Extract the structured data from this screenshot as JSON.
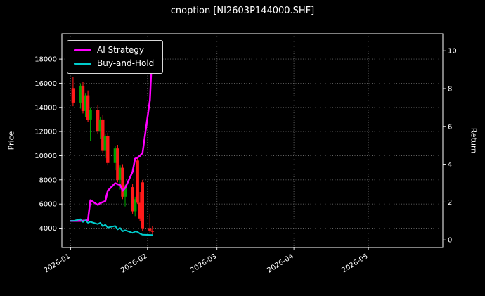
{
  "window": {
    "title": "cnoption [NI2603P144000.SHF]"
  },
  "chart_data": {
    "type": "candlestick+line",
    "title": "cnoption [NI2603P144000.SHF]",
    "ylabel_left": "Price",
    "ylabel_right": "Return",
    "background": "#000000",
    "text_color": "#ffffff",
    "spine_color": "#ffffff",
    "grid": {
      "show": true,
      "color": "#666666",
      "style": "dotted"
    },
    "x_epoch": "2026-01-01",
    "x_range_days": [
      -3.5,
      150
    ],
    "x_ticks": [
      {
        "date": "2026-01-01",
        "label": "2026-01"
      },
      {
        "date": "2026-02-01",
        "label": "2026-02"
      },
      {
        "date": "2026-03-01",
        "label": "2026-03"
      },
      {
        "date": "2026-04-01",
        "label": "2026-04"
      },
      {
        "date": "2026-05-01",
        "label": "2026-05"
      }
    ],
    "price_axis": {
      "lim": [
        2400,
        20100
      ],
      "ticks": [
        4000,
        6000,
        8000,
        10000,
        12000,
        14000,
        16000,
        18000
      ]
    },
    "return_axis": {
      "lim": [
        -0.4,
        10.9
      ],
      "ticks": [
        0,
        2,
        4,
        6,
        8,
        10
      ]
    },
    "candles": {
      "up_color": "#00a000",
      "down_color": "#ff1a1a",
      "dates": [
        "2026-01-02",
        "2026-01-05",
        "2026-01-06",
        "2026-01-07",
        "2026-01-08",
        "2026-01-09",
        "2026-01-12",
        "2026-01-13",
        "2026-01-14",
        "2026-01-15",
        "2026-01-16",
        "2026-01-19",
        "2026-01-20",
        "2026-01-21",
        "2026-01-22",
        "2026-01-23",
        "2026-01-26",
        "2026-01-27",
        "2026-01-28",
        "2026-01-29",
        "2026-01-30",
        "2026-02-02",
        "2026-02-03"
      ],
      "open": [
        15600,
        14400,
        15800,
        13700,
        15000,
        13000,
        13800,
        12000,
        13000,
        10400,
        11600,
        9400,
        10600,
        8000,
        9000,
        6600,
        7400,
        5400,
        9600,
        6100,
        7800,
        4000,
        3800
      ],
      "high": [
        16500,
        16000,
        16100,
        15200,
        15400,
        14000,
        14200,
        13200,
        13400,
        11800,
        11900,
        10800,
        10900,
        9200,
        9300,
        7600,
        7700,
        6600,
        9800,
        7000,
        8000,
        5200,
        4200
      ],
      "low": [
        14100,
        13900,
        13500,
        13200,
        12800,
        11200,
        11800,
        11400,
        10200,
        9800,
        9200,
        8800,
        7800,
        7200,
        6400,
        5800,
        5200,
        5000,
        6000,
        4600,
        3800,
        3600,
        3500
      ],
      "close": [
        14400,
        15800,
        13700,
        15000,
        13000,
        13800,
        12000,
        13000,
        10400,
        11600,
        9400,
        10600,
        8000,
        9000,
        6600,
        7400,
        5400,
        6400,
        6100,
        4800,
        4000,
        3800,
        3700
      ]
    },
    "series": [
      {
        "name": "AI Strategy",
        "color": "#ff00ff",
        "width": 2.5,
        "axis": "return",
        "dates": [
          "2026-01-01",
          "2026-01-02",
          "2026-01-05",
          "2026-01-06",
          "2026-01-07",
          "2026-01-08",
          "2026-01-09",
          "2026-01-12",
          "2026-01-13",
          "2026-01-14",
          "2026-01-15",
          "2026-01-16",
          "2026-01-19",
          "2026-01-20",
          "2026-01-21",
          "2026-01-22",
          "2026-01-23",
          "2026-01-26",
          "2026-01-27",
          "2026-01-28",
          "2026-01-29",
          "2026-01-30",
          "2026-02-02",
          "2026-02-03"
        ],
        "values": [
          1.0,
          1.0,
          1.0,
          1.02,
          1.02,
          1.05,
          2.1,
          1.85,
          1.95,
          2.0,
          2.05,
          2.6,
          3.0,
          2.95,
          2.9,
          2.6,
          2.75,
          3.6,
          4.3,
          4.35,
          4.45,
          4.6,
          7.4,
          10.3
        ]
      },
      {
        "name": "Buy-and-Hold",
        "color": "#00cdcd",
        "width": 2,
        "axis": "return",
        "dates": [
          "2026-01-01",
          "2026-01-02",
          "2026-01-05",
          "2026-01-06",
          "2026-01-07",
          "2026-01-08",
          "2026-01-09",
          "2026-01-12",
          "2026-01-13",
          "2026-01-14",
          "2026-01-15",
          "2026-01-16",
          "2026-01-19",
          "2026-01-20",
          "2026-01-21",
          "2026-01-22",
          "2026-01-23",
          "2026-01-26",
          "2026-01-27",
          "2026-01-28",
          "2026-01-29",
          "2026-01-30",
          "2026-02-02",
          "2026-02-03"
        ],
        "values": [
          1.0,
          1.0,
          1.097,
          0.951,
          1.042,
          0.903,
          0.958,
          0.833,
          0.903,
          0.722,
          0.806,
          0.653,
          0.736,
          0.556,
          0.625,
          0.458,
          0.514,
          0.375,
          0.444,
          0.424,
          0.333,
          0.278,
          0.264,
          0.257
        ]
      }
    ],
    "legend": {
      "position": "top-left",
      "border_color": "#d9d9d9",
      "background": "#000000"
    }
  }
}
